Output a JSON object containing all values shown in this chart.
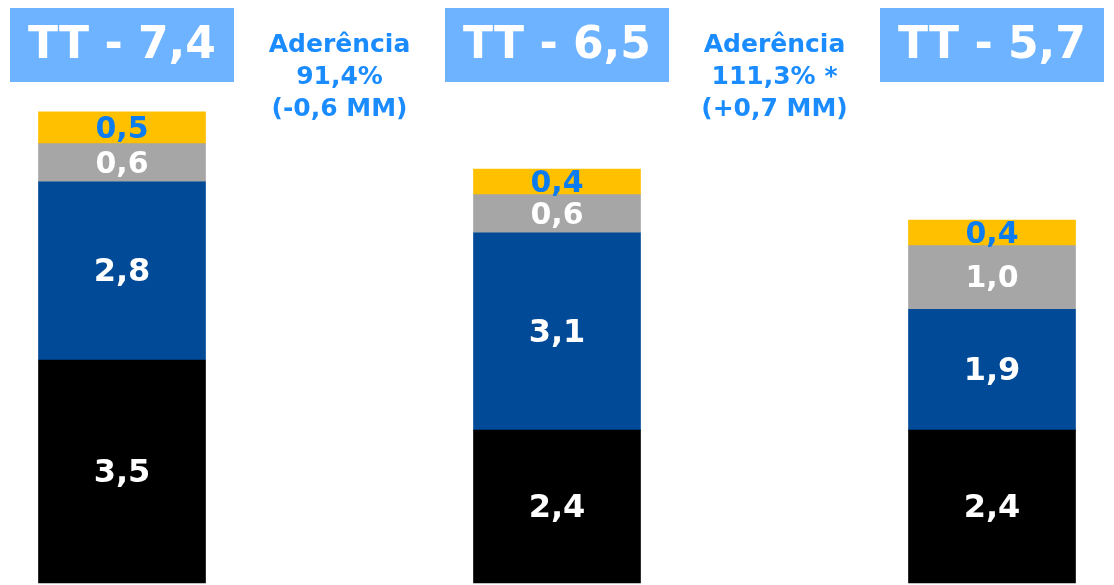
{
  "chart_data": {
    "type": "bar",
    "stacked": true,
    "categories": [
      "TT - 7,4",
      "TT - 6,5",
      "TT - 5,7"
    ],
    "series": [
      {
        "color": "#000000",
        "values": [
          3.5,
          2.4,
          2.4
        ],
        "value_labels": [
          "3,5",
          "2,4",
          "2,4"
        ]
      },
      {
        "color": "#004a98",
        "values": [
          2.8,
          3.1,
          1.9
        ],
        "value_labels": [
          "2,8",
          "3,1",
          "1,9"
        ]
      },
      {
        "color": "#a6a6a6",
        "values": [
          0.6,
          0.6,
          1.0
        ],
        "value_labels": [
          "0,6",
          "0,6",
          "1,0"
        ]
      },
      {
        "color": "#ffc000",
        "values": [
          0.5,
          0.4,
          0.4
        ],
        "value_labels": [
          "0,5",
          "0,4",
          "0,4"
        ]
      }
    ],
    "annotations": [
      "Aderência\n91,4%\n(-0,6 MM)",
      "Aderência\n111,3% *\n(+0,7 MM)"
    ],
    "ylim": [
      0,
      9
    ],
    "legend": false
  }
}
